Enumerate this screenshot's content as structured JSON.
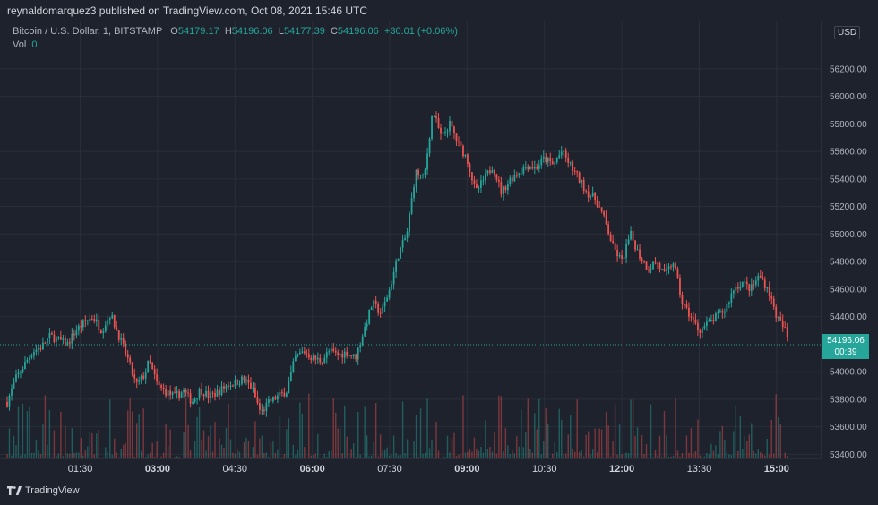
{
  "header": {
    "published_text": "reynaldomarquez3 published on TradingView.com, Oct 08, 2021 15:46 UTC"
  },
  "legend": {
    "symbol": "Bitcoin / U.S. Dollar, 1, BITSTAMP",
    "o_label": "O",
    "o_value": "54179.17",
    "h_label": "H",
    "h_value": "54196.06",
    "l_label": "L",
    "l_value": "54177.39",
    "c_label": "C",
    "c_value": "54196.06",
    "change": "+30.01 (+0.06%)",
    "vol_label": "Vol",
    "vol_value": "0"
  },
  "currency_button": "USD",
  "price_tag": {
    "price": "54196.06",
    "countdown": "00:39"
  },
  "footer": {
    "brand": "TradingView"
  },
  "colors": {
    "up": "#26a69a",
    "down": "#ef5350",
    "background": "#1e222d",
    "grid": "#2a2e39"
  },
  "chart_data": {
    "type": "candlestick",
    "symbol": "Bitcoin / U.S. Dollar",
    "interval": "1",
    "exchange": "BITSTAMP",
    "y_ticks": [
      "56200.00",
      "56000.00",
      "55800.00",
      "55600.00",
      "55400.00",
      "55200.00",
      "55000.00",
      "54800.00",
      "54600.00",
      "54400.00",
      "54000.00",
      "53800.00",
      "53600.00",
      "53400.00"
    ],
    "y_tick_values": [
      56200,
      56000,
      55800,
      55600,
      55400,
      55200,
      55000,
      54800,
      54600,
      54400,
      54000,
      53800,
      53600,
      53400
    ],
    "ylim": [
      53370,
      56440
    ],
    "x_ticks": [
      "01:30",
      "03:00",
      "04:30",
      "06:00",
      "07:30",
      "09:00",
      "10:30",
      "12:00",
      "13:30",
      "15:00"
    ],
    "x_bold": [
      false,
      true,
      false,
      true,
      false,
      true,
      false,
      true,
      false,
      true
    ],
    "x_tick_minutes": [
      90,
      180,
      270,
      360,
      450,
      540,
      630,
      720,
      810,
      900
    ],
    "xlim_minutes": [
      5,
      945
    ],
    "current_price": 54196.06,
    "close_path": [
      [
        5,
        53780
      ],
      [
        15,
        53950
      ],
      [
        25,
        54050
      ],
      [
        35,
        54150
      ],
      [
        45,
        54180
      ],
      [
        55,
        54260
      ],
      [
        65,
        54230
      ],
      [
        75,
        54200
      ],
      [
        85,
        54300
      ],
      [
        95,
        54360
      ],
      [
        105,
        54400
      ],
      [
        115,
        54300
      ],
      [
        125,
        54420
      ],
      [
        135,
        54260
      ],
      [
        145,
        54100
      ],
      [
        155,
        53900
      ],
      [
        165,
        53980
      ],
      [
        170,
        54080
      ],
      [
        180,
        53900
      ],
      [
        190,
        53850
      ],
      [
        200,
        53820
      ],
      [
        210,
        53860
      ],
      [
        220,
        53780
      ],
      [
        230,
        53870
      ],
      [
        240,
        53820
      ],
      [
        250,
        53850
      ],
      [
        260,
        53900
      ],
      [
        270,
        53920
      ],
      [
        280,
        53950
      ],
      [
        290,
        53880
      ],
      [
        300,
        53700
      ],
      [
        310,
        53780
      ],
      [
        320,
        53820
      ],
      [
        330,
        53860
      ],
      [
        340,
        54100
      ],
      [
        350,
        54150
      ],
      [
        360,
        54100
      ],
      [
        370,
        54080
      ],
      [
        380,
        54150
      ],
      [
        390,
        54120
      ],
      [
        400,
        54140
      ],
      [
        410,
        54100
      ],
      [
        420,
        54300
      ],
      [
        430,
        54500
      ],
      [
        440,
        54420
      ],
      [
        450,
        54600
      ],
      [
        460,
        54850
      ],
      [
        470,
        55000
      ],
      [
        480,
        55450
      ],
      [
        490,
        55400
      ],
      [
        500,
        55900
      ],
      [
        510,
        55700
      ],
      [
        520,
        55800
      ],
      [
        530,
        55650
      ],
      [
        540,
        55550
      ],
      [
        550,
        55300
      ],
      [
        560,
        55400
      ],
      [
        570,
        55500
      ],
      [
        580,
        55300
      ],
      [
        590,
        55400
      ],
      [
        600,
        55450
      ],
      [
        610,
        55500
      ],
      [
        620,
        55480
      ],
      [
        630,
        55550
      ],
      [
        640,
        55500
      ],
      [
        650,
        55600
      ],
      [
        660,
        55500
      ],
      [
        670,
        55400
      ],
      [
        680,
        55300
      ],
      [
        690,
        55250
      ],
      [
        700,
        55100
      ],
      [
        710,
        54900
      ],
      [
        720,
        54800
      ],
      [
        730,
        55000
      ],
      [
        740,
        54850
      ],
      [
        750,
        54750
      ],
      [
        760,
        54800
      ],
      [
        770,
        54700
      ],
      [
        780,
        54800
      ],
      [
        790,
        54500
      ],
      [
        800,
        54400
      ],
      [
        810,
        54300
      ],
      [
        820,
        54350
      ],
      [
        830,
        54400
      ],
      [
        840,
        54450
      ],
      [
        850,
        54600
      ],
      [
        860,
        54650
      ],
      [
        870,
        54600
      ],
      [
        880,
        54700
      ],
      [
        890,
        54600
      ],
      [
        900,
        54400
      ],
      [
        910,
        54300
      ],
      [
        915,
        54196
      ]
    ],
    "volume_note": "per-candle volume histogram along bottom, no scale printed"
  }
}
